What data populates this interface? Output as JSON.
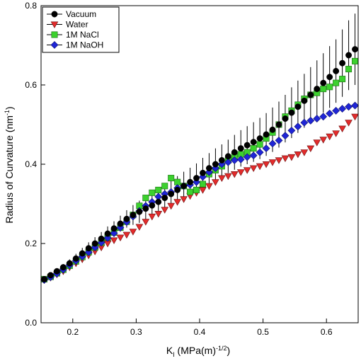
{
  "chart_data": {
    "type": "scatter",
    "title": "",
    "xlabel": {
      "main": "K",
      "sub": "I",
      "rest": " (MPa(m)",
      "sup": "-1/2",
      "close": ")"
    },
    "ylabel": {
      "main": "Radius of Curvature (nm",
      "sup": "-1",
      "close": ")"
    },
    "xlim": [
      0.15,
      0.65
    ],
    "ylim": [
      0.0,
      0.8
    ],
    "xticks": [
      0.2,
      0.3,
      0.4,
      0.5,
      0.6
    ],
    "xtick_labels": [
      "0.2",
      "0.3",
      "0.4",
      "0.5",
      "0.6"
    ],
    "yticks": [
      0.0,
      0.2,
      0.4,
      0.6,
      0.8
    ],
    "ytick_labels": [
      "0.0",
      "0.2",
      "0.4",
      "0.6",
      "0.8"
    ],
    "grid": false,
    "legend_position": "top-left",
    "series": [
      {
        "name": "Vacuum",
        "marker": "circle",
        "color": "#000000",
        "x": [
          0.155,
          0.165,
          0.175,
          0.185,
          0.195,
          0.205,
          0.215,
          0.225,
          0.235,
          0.245,
          0.255,
          0.265,
          0.275,
          0.285,
          0.295,
          0.305,
          0.315,
          0.325,
          0.335,
          0.345,
          0.355,
          0.365,
          0.375,
          0.385,
          0.395,
          0.405,
          0.415,
          0.425,
          0.435,
          0.445,
          0.455,
          0.465,
          0.475,
          0.485,
          0.495,
          0.505,
          0.515,
          0.525,
          0.535,
          0.545,
          0.555,
          0.565,
          0.575,
          0.585,
          0.595,
          0.605,
          0.615,
          0.625,
          0.635,
          0.645
        ],
        "y": [
          0.11,
          0.12,
          0.13,
          0.14,
          0.15,
          0.162,
          0.175,
          0.188,
          0.2,
          0.212,
          0.225,
          0.238,
          0.25,
          0.262,
          0.272,
          0.28,
          0.288,
          0.296,
          0.305,
          0.315,
          0.325,
          0.335,
          0.345,
          0.355,
          0.365,
          0.378,
          0.39,
          0.4,
          0.41,
          0.42,
          0.43,
          0.44,
          0.448,
          0.456,
          0.465,
          0.475,
          0.487,
          0.5,
          0.515,
          0.53,
          0.545,
          0.56,
          0.575,
          0.59,
          0.605,
          0.62,
          0.635,
          0.655,
          0.675,
          0.69
        ],
        "error": [
          0.005,
          0.006,
          0.007,
          0.008,
          0.01,
          0.012,
          0.014,
          0.015,
          0.016,
          0.017,
          0.018,
          0.018,
          0.02,
          0.022,
          0.025,
          0.028,
          0.03,
          0.03,
          0.032,
          0.032,
          0.035,
          0.035,
          0.036,
          0.036,
          0.037,
          0.038,
          0.038,
          0.04,
          0.04,
          0.042,
          0.044,
          0.046,
          0.048,
          0.05,
          0.052,
          0.054,
          0.056,
          0.058,
          0.06,
          0.064,
          0.066,
          0.068,
          0.07,
          0.072,
          0.075,
          0.078,
          0.08,
          0.085,
          0.088,
          0.09
        ]
      },
      {
        "name": "Water",
        "marker": "triangle-down",
        "color": "#e32b2b",
        "x": [
          0.155,
          0.165,
          0.175,
          0.185,
          0.195,
          0.205,
          0.215,
          0.225,
          0.235,
          0.245,
          0.255,
          0.265,
          0.275,
          0.285,
          0.295,
          0.305,
          0.315,
          0.325,
          0.335,
          0.345,
          0.355,
          0.365,
          0.375,
          0.385,
          0.395,
          0.405,
          0.415,
          0.425,
          0.435,
          0.445,
          0.455,
          0.465,
          0.475,
          0.485,
          0.495,
          0.505,
          0.515,
          0.525,
          0.535,
          0.545,
          0.555,
          0.565,
          0.575,
          0.585,
          0.595,
          0.605,
          0.615,
          0.625,
          0.635,
          0.645
        ],
        "y": [
          0.108,
          0.114,
          0.122,
          0.13,
          0.14,
          0.15,
          0.16,
          0.17,
          0.18,
          0.19,
          0.2,
          0.208,
          0.215,
          0.222,
          0.23,
          0.242,
          0.255,
          0.268,
          0.275,
          0.285,
          0.295,
          0.305,
          0.312,
          0.32,
          0.328,
          0.335,
          0.345,
          0.355,
          0.365,
          0.37,
          0.375,
          0.38,
          0.385,
          0.39,
          0.395,
          0.4,
          0.405,
          0.41,
          0.415,
          0.418,
          0.425,
          0.43,
          0.44,
          0.455,
          0.462,
          0.47,
          0.478,
          0.49,
          0.505,
          0.52
        ]
      },
      {
        "name": "1M NaCl",
        "marker": "square",
        "color": "#3cd12e",
        "x": [
          0.155,
          0.165,
          0.175,
          0.185,
          0.195,
          0.205,
          0.215,
          0.225,
          0.235,
          0.245,
          0.255,
          0.265,
          0.275,
          0.285,
          0.295,
          0.305,
          0.315,
          0.325,
          0.335,
          0.345,
          0.355,
          0.365,
          0.375,
          0.385,
          0.395,
          0.405,
          0.415,
          0.425,
          0.435,
          0.445,
          0.455,
          0.465,
          0.475,
          0.485,
          0.495,
          0.505,
          0.515,
          0.525,
          0.535,
          0.545,
          0.555,
          0.565,
          0.575,
          0.585,
          0.595,
          0.605,
          0.615,
          0.625,
          0.635,
          0.645
        ],
        "y": [
          0.11,
          0.116,
          0.125,
          0.134,
          0.144,
          0.155,
          0.166,
          0.178,
          0.19,
          0.202,
          0.215,
          0.228,
          0.24,
          0.255,
          0.272,
          0.295,
          0.315,
          0.328,
          0.335,
          0.345,
          0.365,
          0.355,
          0.345,
          0.33,
          0.335,
          0.35,
          0.375,
          0.385,
          0.395,
          0.41,
          0.42,
          0.425,
          0.43,
          0.44,
          0.45,
          0.465,
          0.48,
          0.5,
          0.52,
          0.535,
          0.55,
          0.565,
          0.575,
          0.58,
          0.59,
          0.595,
          0.605,
          0.615,
          0.64,
          0.66
        ]
      },
      {
        "name": "1M NaOH",
        "marker": "diamond",
        "color": "#1f25d6",
        "x": [
          0.155,
          0.165,
          0.175,
          0.185,
          0.195,
          0.205,
          0.215,
          0.225,
          0.235,
          0.245,
          0.255,
          0.265,
          0.275,
          0.285,
          0.295,
          0.305,
          0.315,
          0.325,
          0.335,
          0.345,
          0.355,
          0.365,
          0.375,
          0.385,
          0.395,
          0.405,
          0.415,
          0.425,
          0.435,
          0.445,
          0.455,
          0.465,
          0.475,
          0.485,
          0.495,
          0.505,
          0.515,
          0.525,
          0.535,
          0.545,
          0.555,
          0.565,
          0.575,
          0.585,
          0.595,
          0.605,
          0.615,
          0.625,
          0.635,
          0.645
        ],
        "y": [
          0.108,
          0.115,
          0.124,
          0.134,
          0.145,
          0.156,
          0.167,
          0.178,
          0.19,
          0.202,
          0.214,
          0.226,
          0.24,
          0.254,
          0.268,
          0.282,
          0.295,
          0.305,
          0.318,
          0.325,
          0.33,
          0.34,
          0.345,
          0.348,
          0.355,
          0.368,
          0.38,
          0.39,
          0.4,
          0.405,
          0.41,
          0.412,
          0.418,
          0.422,
          0.43,
          0.44,
          0.452,
          0.46,
          0.472,
          0.485,
          0.495,
          0.505,
          0.51,
          0.515,
          0.52,
          0.528,
          0.535,
          0.54,
          0.545,
          0.548
        ]
      }
    ]
  }
}
